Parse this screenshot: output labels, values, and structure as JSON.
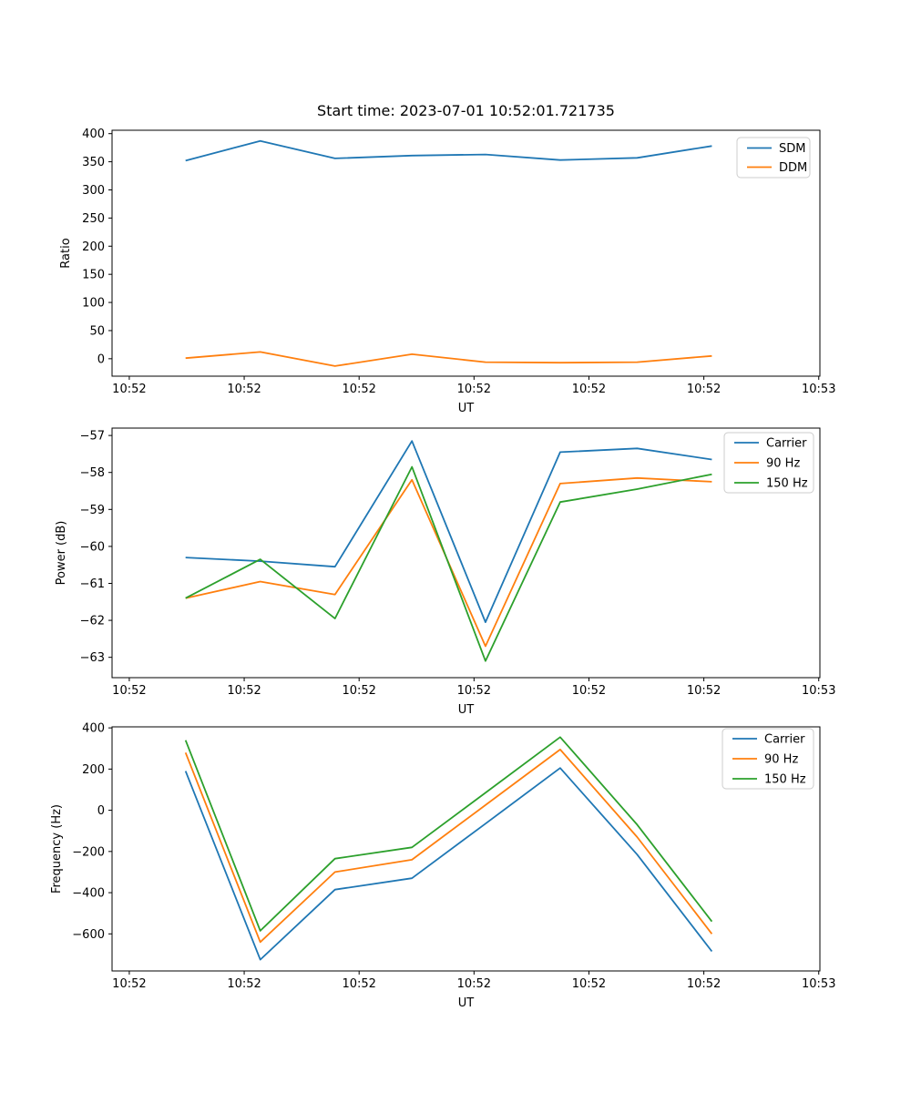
{
  "title": "Start time: 2023-07-01 10:52:01.721735",
  "axis_label_ut": "UT",
  "chart_data": [
    {
      "type": "line",
      "title": "",
      "xlabel": "UT",
      "ylabel": "Ratio",
      "x_seconds_after_10_52_00": [
        4.9,
        11.4,
        17.9,
        24.6,
        31.0,
        37.5,
        44.2,
        50.7
      ],
      "xlim_seconds": [
        -1.5,
        60.1
      ],
      "ylim": [
        -31,
        406
      ],
      "xticks_seconds": [
        0,
        10,
        20,
        30,
        40,
        50,
        60
      ],
      "xtick_labels": [
        "10:52",
        "10:52",
        "10:52",
        "10:52",
        "10:52",
        "10:52",
        "10:53"
      ],
      "yticks": [
        0,
        50,
        100,
        150,
        200,
        250,
        300,
        350,
        400
      ],
      "ytick_labels": [
        "0",
        "50",
        "100",
        "150",
        "200",
        "250",
        "300",
        "350",
        "400"
      ],
      "grid": false,
      "legend_position": "upper right",
      "series": [
        {
          "name": "SDM",
          "color": "#1f77b4",
          "values": [
            352,
            387,
            356,
            361,
            363,
            353,
            357,
            378
          ]
        },
        {
          "name": "DDM",
          "color": "#ff7f0e",
          "values": [
            1,
            12,
            -13,
            8,
            -6,
            -7,
            -6,
            5
          ]
        }
      ]
    },
    {
      "type": "line",
      "title": "",
      "xlabel": "UT",
      "ylabel": "Power (dB)",
      "x_seconds_after_10_52_00": [
        4.9,
        11.4,
        17.9,
        24.6,
        31.0,
        37.5,
        44.2,
        50.7
      ],
      "xlim_seconds": [
        -1.5,
        60.1
      ],
      "ylim": [
        -63.55,
        -56.8
      ],
      "xticks_seconds": [
        0,
        10,
        20,
        30,
        40,
        50,
        60
      ],
      "xtick_labels": [
        "10:52",
        "10:52",
        "10:52",
        "10:52",
        "10:52",
        "10:52",
        "10:53"
      ],
      "yticks": [
        -63,
        -62,
        -61,
        -60,
        -59,
        -58,
        -57
      ],
      "ytick_labels": [
        "−63",
        "−62",
        "−61",
        "−60",
        "−59",
        "−58",
        "−57"
      ],
      "grid": false,
      "legend_position": "upper right",
      "series": [
        {
          "name": "Carrier",
          "color": "#1f77b4",
          "values": [
            -60.3,
            -60.4,
            -60.55,
            -57.15,
            -62.05,
            -57.45,
            -57.35,
            -57.65
          ]
        },
        {
          "name": "90 Hz",
          "color": "#ff7f0e",
          "values": [
            -61.4,
            -60.95,
            -61.3,
            -58.2,
            -62.7,
            -58.3,
            -58.15,
            -58.25
          ]
        },
        {
          "name": "150 Hz",
          "color": "#2ca02c",
          "values": [
            -61.4,
            -60.35,
            -61.95,
            -57.85,
            -63.1,
            -58.8,
            -58.45,
            -58.05
          ]
        }
      ]
    },
    {
      "type": "line",
      "title": "",
      "xlabel": "UT",
      "ylabel": "Frequency (Hz)",
      "x_seconds_after_10_52_00": [
        4.9,
        11.4,
        17.9,
        24.6,
        31.0,
        37.5,
        44.2,
        50.7
      ],
      "xlim_seconds": [
        -1.5,
        60.1
      ],
      "ylim": [
        -780,
        405
      ],
      "xticks_seconds": [
        0,
        10,
        20,
        30,
        40,
        50,
        60
      ],
      "xtick_labels": [
        "10:52",
        "10:52",
        "10:52",
        "10:52",
        "10:52",
        "10:52",
        "10:53"
      ],
      "yticks": [
        -600,
        -400,
        -200,
        0,
        200,
        400
      ],
      "ytick_labels": [
        "−600",
        "−400",
        "−200",
        "0",
        "200",
        "400"
      ],
      "grid": false,
      "legend_position": "upper right",
      "series": [
        {
          "name": "Carrier",
          "color": "#1f77b4",
          "values": [
            190,
            -725,
            -385,
            -330,
            -65,
            205,
            -215,
            -685
          ]
        },
        {
          "name": "90 Hz",
          "color": "#ff7f0e",
          "values": [
            280,
            -640,
            -300,
            -240,
            25,
            295,
            -130,
            -600
          ]
        },
        {
          "name": "150 Hz",
          "color": "#2ca02c",
          "values": [
            340,
            -585,
            -235,
            -180,
            85,
            355,
            -70,
            -540
          ]
        }
      ]
    }
  ],
  "colors": {
    "background": "#ffffff",
    "spine": "#000000",
    "legend_border": "#cccccc",
    "series_blue": "#1f77b4",
    "series_orange": "#ff7f0e",
    "series_green": "#2ca02c"
  }
}
